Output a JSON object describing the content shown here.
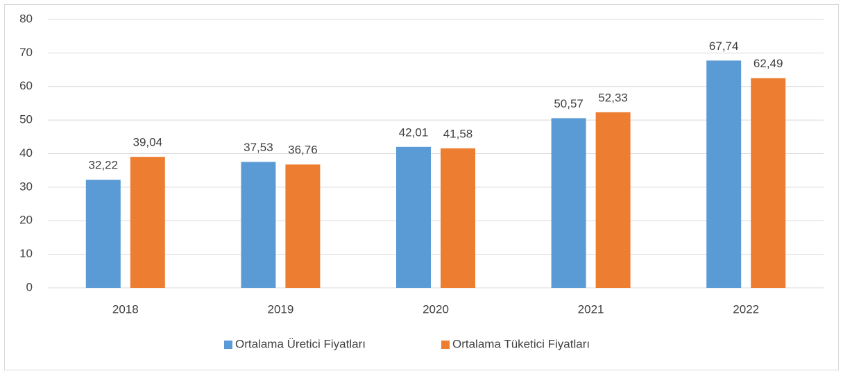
{
  "chart_data": {
    "type": "bar",
    "categories": [
      "2018",
      "2019",
      "2020",
      "2021",
      "2022"
    ],
    "series": [
      {
        "name": "Ortalama Üretici Fiyatları",
        "color": "#5b9bd5",
        "values": [
          32.22,
          37.53,
          42.01,
          50.57,
          67.74
        ],
        "value_labels": [
          "32,22",
          "37,53",
          "42,01",
          "50,57",
          "67,74"
        ]
      },
      {
        "name": "Ortalama Tüketici Fiyatları",
        "color": "#ed7d31",
        "values": [
          39.04,
          36.76,
          41.58,
          52.33,
          62.49
        ],
        "value_labels": [
          "39,04",
          "36,76",
          "41,58",
          "52,33",
          "62,49"
        ]
      }
    ],
    "ylim": [
      0,
      80
    ],
    "yticks": [
      0,
      10,
      20,
      30,
      40,
      50,
      60,
      70,
      80
    ],
    "grid": true,
    "legend": "bottom"
  }
}
